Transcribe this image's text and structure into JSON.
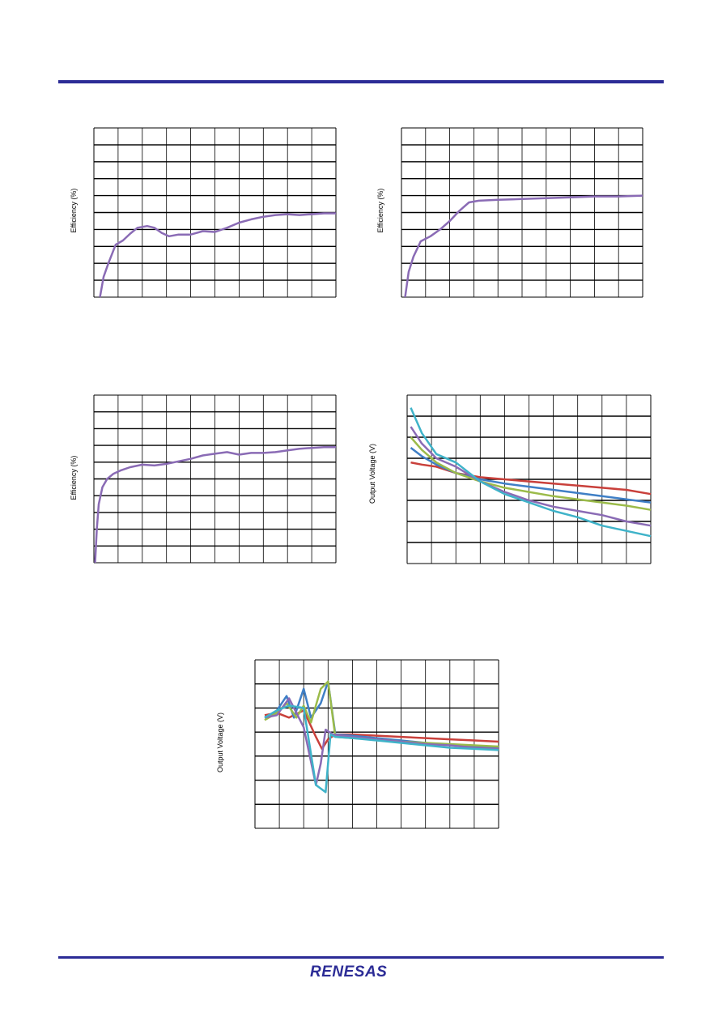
{
  "brand": {
    "name": "RENESAS",
    "color": "#2c2c96"
  },
  "colors": {
    "rule": "#2c2c96",
    "grid": "#000000",
    "series_purple": "#8a6bb5",
    "series_red": "#c9403b",
    "series_blue": "#3f7fc6",
    "series_green": "#9bbb4a",
    "series_cyan": "#3fb3c9"
  },
  "chart_data": [
    {
      "id": "eff-1",
      "type": "line",
      "ylabel": "Efficiency (%)",
      "grid": true,
      "grid_cols": 10,
      "grid_rows": 10,
      "xlim": [
        0,
        10
      ],
      "ylim": [
        0,
        10
      ],
      "series": [
        {
          "color": "#8a6bb5",
          "x": [
            0.25,
            0.4,
            0.6,
            0.9,
            1.2,
            1.5,
            1.8,
            2.2,
            2.5,
            2.8,
            3.1,
            3.5,
            4.0,
            4.5,
            5.0,
            5.5,
            6.0,
            6.5,
            7.0,
            7.5,
            8.0,
            8.5,
            9.0,
            9.5,
            10.0
          ],
          "y": [
            0.0,
            1.2,
            2.0,
            3.1,
            3.35,
            3.75,
            4.1,
            4.2,
            4.1,
            3.8,
            3.6,
            3.7,
            3.7,
            3.9,
            3.85,
            4.1,
            4.4,
            4.6,
            4.75,
            4.85,
            4.9,
            4.85,
            4.9,
            4.95,
            4.95
          ]
        }
      ]
    },
    {
      "id": "eff-2",
      "type": "line",
      "ylabel": "Efficiency (%)",
      "grid": true,
      "grid_cols": 10,
      "grid_rows": 10,
      "xlim": [
        0,
        10
      ],
      "ylim": [
        0,
        10
      ],
      "series": [
        {
          "color": "#8a6bb5",
          "x": [
            0.15,
            0.3,
            0.5,
            0.8,
            1.2,
            1.6,
            2.0,
            2.4,
            2.8,
            3.2,
            4.0,
            5.0,
            6.0,
            7.0,
            8.0,
            9.0,
            10.0
          ],
          "y": [
            0.0,
            1.5,
            2.4,
            3.3,
            3.6,
            4.0,
            4.5,
            5.1,
            5.6,
            5.7,
            5.75,
            5.8,
            5.85,
            5.9,
            5.95,
            5.95,
            6.0
          ]
        }
      ]
    },
    {
      "id": "eff-3",
      "type": "line",
      "ylabel": "Efficiency (%)",
      "grid": true,
      "grid_cols": 10,
      "grid_rows": 10,
      "xlim": [
        0,
        10
      ],
      "ylim": [
        0,
        10
      ],
      "series": [
        {
          "color": "#8a6bb5",
          "x": [
            0.05,
            0.12,
            0.2,
            0.35,
            0.55,
            0.8,
            1.1,
            1.5,
            2.0,
            2.5,
            3.0,
            3.5,
            4.0,
            4.5,
            5.0,
            5.5,
            6.0,
            6.5,
            7.0,
            7.5,
            8.0,
            8.5,
            9.0,
            9.5,
            10.0
          ],
          "y": [
            0.0,
            2.0,
            3.5,
            4.5,
            5.0,
            5.3,
            5.5,
            5.7,
            5.85,
            5.8,
            5.9,
            6.05,
            6.2,
            6.4,
            6.5,
            6.6,
            6.45,
            6.55,
            6.55,
            6.6,
            6.7,
            6.8,
            6.85,
            6.9,
            6.9
          ]
        }
      ]
    },
    {
      "id": "vout-1",
      "type": "line",
      "ylabel": "Output Voltage (V)",
      "grid": true,
      "grid_cols": 10,
      "grid_rows": 8,
      "xlim": [
        0,
        10
      ],
      "ylim": [
        0,
        8
      ],
      "series": [
        {
          "color": "#c9403b",
          "x": [
            0.15,
            0.6,
            1.2,
            2.0,
            3.0,
            4.0,
            5.0,
            6.0,
            7.0,
            8.0,
            9.0,
            10.0
          ],
          "y": [
            4.8,
            4.7,
            4.6,
            4.3,
            4.1,
            4.0,
            3.9,
            3.8,
            3.7,
            3.6,
            3.5,
            3.3
          ]
        },
        {
          "color": "#3f7fc6",
          "x": [
            0.15,
            0.6,
            1.2,
            2.0,
            3.0,
            4.0,
            5.0,
            6.0,
            7.0,
            8.0,
            9.0,
            10.0
          ],
          "y": [
            5.5,
            5.1,
            4.7,
            4.3,
            4.0,
            3.8,
            3.65,
            3.5,
            3.35,
            3.2,
            3.05,
            2.9
          ]
        },
        {
          "color": "#9bbb4a",
          "x": [
            0.15,
            0.6,
            1.2,
            2.0,
            3.0,
            4.0,
            5.0,
            6.0,
            7.0,
            8.0,
            9.0,
            10.0
          ],
          "y": [
            6.0,
            5.4,
            4.8,
            4.3,
            3.9,
            3.6,
            3.4,
            3.2,
            3.05,
            2.9,
            2.75,
            2.55
          ]
        },
        {
          "color": "#8a6bb5",
          "x": [
            0.15,
            0.6,
            1.2,
            2.0,
            3.0,
            4.0,
            5.0,
            6.0,
            7.0,
            8.0,
            9.0,
            10.0
          ],
          "y": [
            6.5,
            5.7,
            5.0,
            4.6,
            3.9,
            3.4,
            3.0,
            2.7,
            2.5,
            2.3,
            2.0,
            1.8
          ]
        },
        {
          "color": "#3fb3c9",
          "x": [
            0.15,
            0.6,
            1.2,
            2.0,
            3.0,
            4.0,
            5.0,
            6.0,
            7.0,
            8.0,
            9.0,
            10.0
          ],
          "y": [
            7.4,
            6.2,
            5.2,
            4.8,
            3.9,
            3.3,
            2.9,
            2.5,
            2.2,
            1.8,
            1.55,
            1.3
          ]
        }
      ]
    },
    {
      "id": "vout-2",
      "type": "line",
      "ylabel": "Output Voltage (V)",
      "grid": true,
      "grid_cols": 10,
      "grid_rows": 7,
      "xlim": [
        0,
        10
      ],
      "ylim": [
        0,
        7
      ],
      "series": [
        {
          "color": "#c9403b",
          "x": [
            0.4,
            0.9,
            1.4,
            2.0,
            2.5,
            2.75,
            3.0,
            3.3,
            4.0,
            5.0,
            6.0,
            7.0,
            8.0,
            9.0,
            10.0
          ],
          "y": [
            4.7,
            4.8,
            4.6,
            4.9,
            3.8,
            3.3,
            3.7,
            3.9,
            3.9,
            3.85,
            3.8,
            3.75,
            3.7,
            3.65,
            3.6
          ]
        },
        {
          "color": "#3f7fc6",
          "x": [
            0.4,
            0.9,
            1.3,
            1.6,
            2.0,
            2.3,
            2.7,
            3.0,
            3.3,
            4.0,
            5.0,
            6.0,
            7.0,
            8.0,
            9.0,
            10.0
          ],
          "y": [
            4.6,
            4.9,
            5.5,
            4.6,
            5.8,
            4.6,
            5.2,
            6.1,
            3.9,
            3.85,
            3.75,
            3.65,
            3.55,
            3.45,
            3.4,
            3.35
          ]
        },
        {
          "color": "#9bbb4a",
          "x": [
            0.4,
            0.9,
            1.3,
            1.7,
            2.0,
            2.3,
            2.7,
            3.0,
            3.3,
            4.0,
            5.0,
            6.0,
            7.0,
            8.0,
            9.0,
            10.0
          ],
          "y": [
            4.5,
            4.8,
            5.2,
            4.6,
            5.1,
            4.4,
            5.8,
            6.1,
            3.8,
            3.75,
            3.7,
            3.6,
            3.55,
            3.5,
            3.45,
            3.4
          ]
        },
        {
          "color": "#8a6bb5",
          "x": [
            0.4,
            0.9,
            1.4,
            2.0,
            2.5,
            2.7,
            2.9,
            3.2,
            4.0,
            5.0,
            6.0,
            7.0,
            8.0,
            9.0,
            10.0
          ],
          "y": [
            4.6,
            4.7,
            5.4,
            4.2,
            1.8,
            2.7,
            4.1,
            3.9,
            3.8,
            3.7,
            3.6,
            3.5,
            3.45,
            3.35,
            3.3
          ]
        },
        {
          "color": "#3fb3c9",
          "x": [
            0.4,
            0.9,
            1.4,
            2.0,
            2.5,
            2.9,
            3.1,
            3.3,
            4.0,
            5.0,
            6.0,
            7.0,
            8.0,
            9.0,
            10.0
          ],
          "y": [
            4.6,
            4.9,
            5.1,
            5.0,
            1.8,
            1.5,
            3.9,
            3.8,
            3.75,
            3.65,
            3.55,
            3.45,
            3.35,
            3.3,
            3.25
          ]
        }
      ]
    }
  ]
}
